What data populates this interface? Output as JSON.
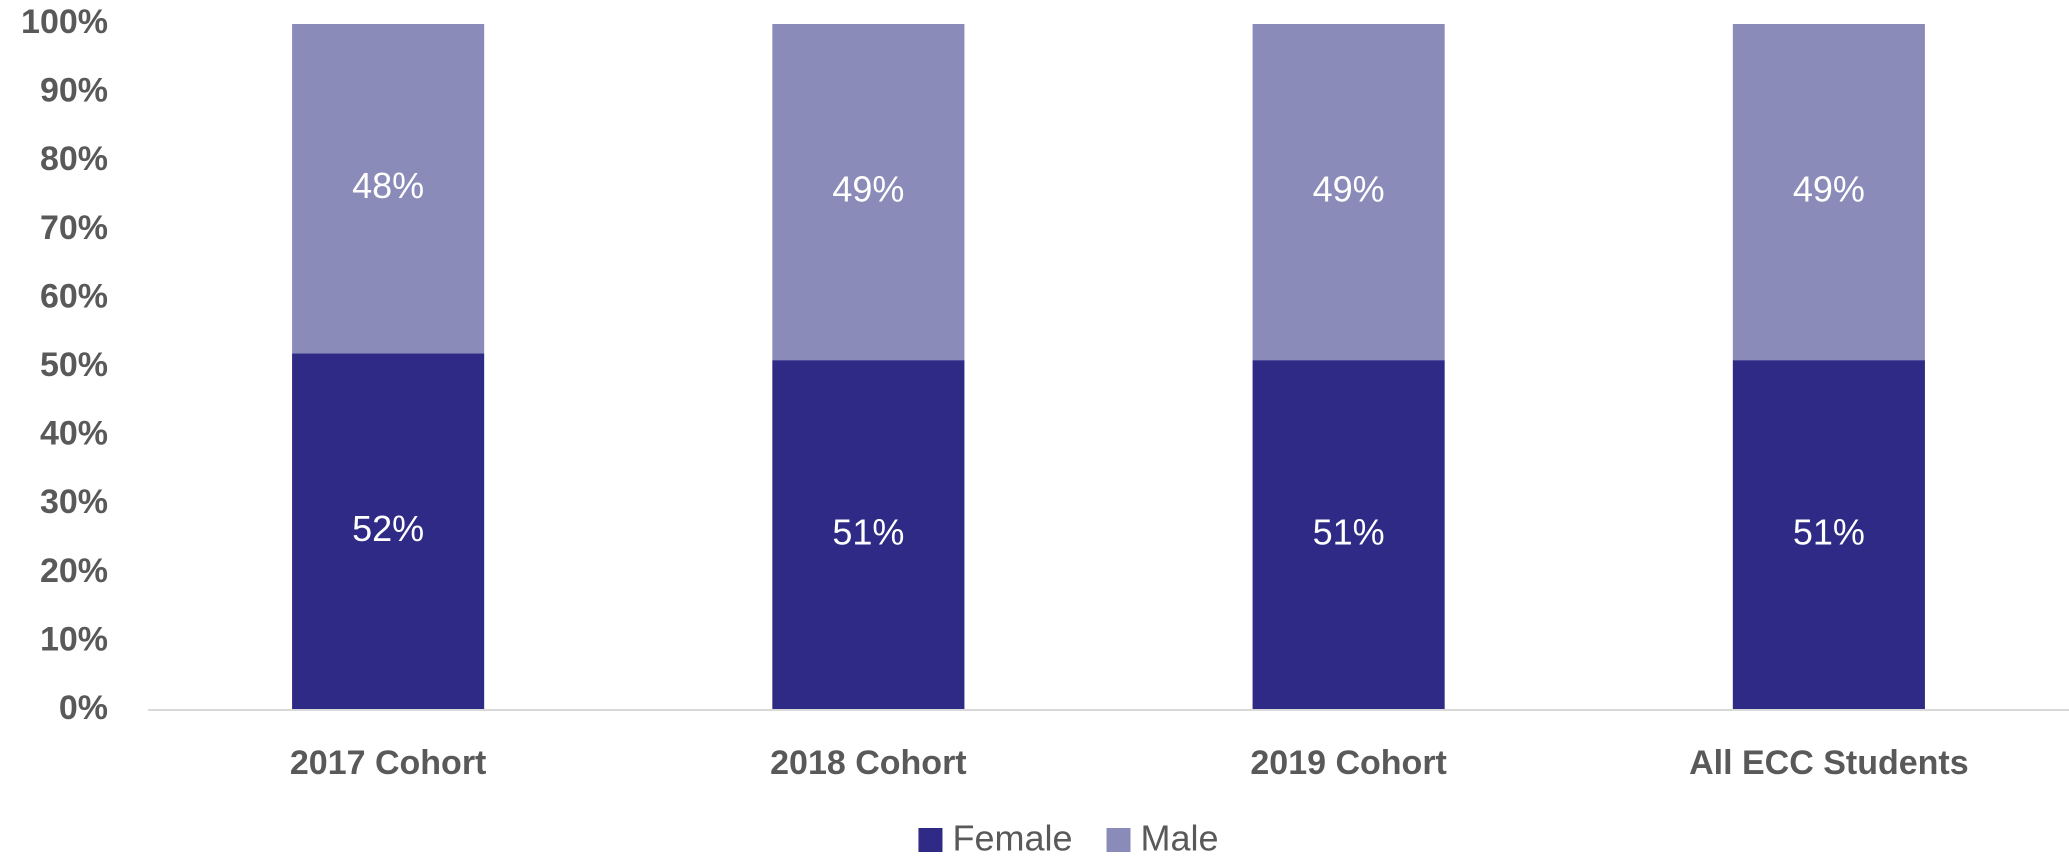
{
  "chart_data": {
    "type": "bar",
    "stacked": true,
    "categories": [
      "2017 Cohort",
      "2018 Cohort",
      "2019 Cohort",
      "All ECC Students"
    ],
    "series": [
      {
        "name": "Female",
        "color": "#2e2a85",
        "values": [
          52,
          51,
          51,
          51
        ],
        "value_labels": [
          "52%",
          "51%",
          "51%",
          "51%"
        ]
      },
      {
        "name": "Male",
        "color": "#8b8bb9",
        "values": [
          48,
          49,
          49,
          49
        ],
        "value_labels": [
          "48%",
          "49%",
          "49%",
          "49%"
        ]
      }
    ],
    "ylim": [
      0,
      100
    ],
    "yticks": [
      {
        "value": 0,
        "label": "0%"
      },
      {
        "value": 10,
        "label": "10%"
      },
      {
        "value": 20,
        "label": "20%"
      },
      {
        "value": 30,
        "label": "30%"
      },
      {
        "value": 40,
        "label": "40%"
      },
      {
        "value": 50,
        "label": "50%"
      },
      {
        "value": 60,
        "label": "60%"
      },
      {
        "value": 70,
        "label": "70%"
      },
      {
        "value": 80,
        "label": "80%"
      },
      {
        "value": 90,
        "label": "90%"
      },
      {
        "value": 100,
        "label": "100%"
      }
    ],
    "grid": false,
    "legend": "bottom"
  }
}
